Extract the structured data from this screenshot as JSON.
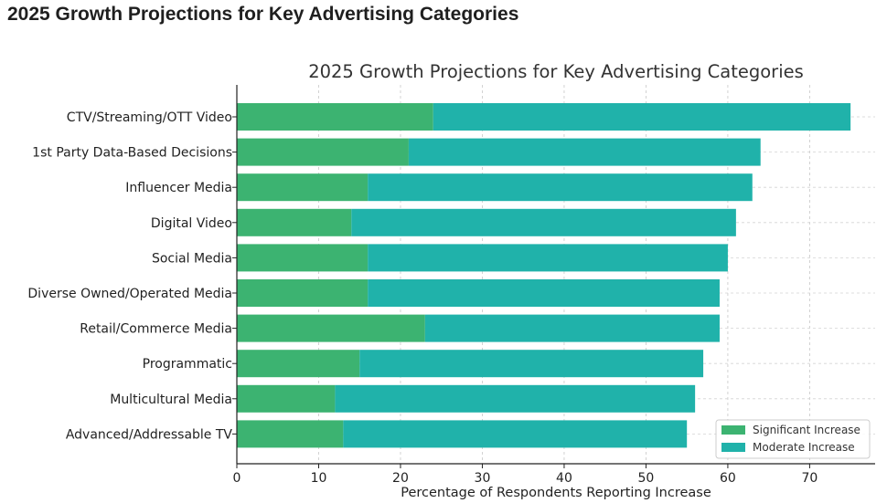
{
  "page": {
    "heading": "2025 Growth Projections for Key Advertising Categories"
  },
  "chart_data": {
    "type": "bar",
    "orientation": "horizontal",
    "stacked": true,
    "title": "2025 Growth Projections for Key Advertising Categories",
    "xlabel": "Percentage of Respondents Reporting Increase",
    "ylabel": "",
    "xlim": [
      0,
      78
    ],
    "xticks": [
      0,
      10,
      20,
      30,
      40,
      50,
      60,
      70
    ],
    "grid": true,
    "legend_position": "bottom-right",
    "categories": [
      "CTV/Streaming/OTT Video",
      "1st Party Data-Based Decisions",
      "Influencer Media",
      "Digital Video",
      "Social Media",
      "Diverse Owned/Operated Media",
      "Retail/Commerce Media",
      "Programmatic",
      "Multicultural Media",
      "Advanced/Addressable TV"
    ],
    "series": [
      {
        "name": "Significant Increase",
        "color": "#3cb371",
        "values": [
          24,
          21,
          16,
          14,
          16,
          16,
          23,
          15,
          12,
          13
        ]
      },
      {
        "name": "Moderate Increase",
        "color": "#20b2aa",
        "values": [
          51,
          43,
          47,
          47,
          44,
          43,
          36,
          42,
          44,
          42
        ]
      }
    ]
  }
}
